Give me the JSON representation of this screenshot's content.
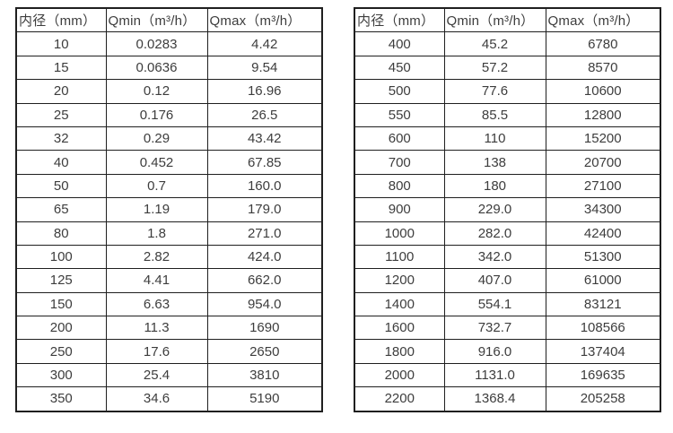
{
  "page": {
    "background": "#ffffff",
    "text_color": "#3d3d3d",
    "border_color": "#1f1f1f"
  },
  "tables": [
    {
      "name": "flow-spec-small-diameters",
      "headers": [
        "内径（mm）",
        "Qmin（m³/h）",
        "Qmax（m³/h）"
      ],
      "rows": [
        [
          "10",
          "0.0283",
          "4.42"
        ],
        [
          "15",
          "0.0636",
          "9.54"
        ],
        [
          "20",
          "0.12",
          "16.96"
        ],
        [
          "25",
          "0.176",
          "26.5"
        ],
        [
          "32",
          "0.29",
          "43.42"
        ],
        [
          "40",
          "0.452",
          "67.85"
        ],
        [
          "50",
          "0.7",
          "160.0"
        ],
        [
          "65",
          "1.19",
          "179.0"
        ],
        [
          "80",
          "1.8",
          "271.0"
        ],
        [
          "100",
          "2.82",
          "424.0"
        ],
        [
          "125",
          "4.41",
          "662.0"
        ],
        [
          "150",
          "6.63",
          "954.0"
        ],
        [
          "200",
          "11.3",
          "1690"
        ],
        [
          "250",
          "17.6",
          "2650"
        ],
        [
          "300",
          "25.4",
          "3810"
        ],
        [
          "350",
          "34.6",
          "5190"
        ]
      ]
    },
    {
      "name": "flow-spec-large-diameters",
      "headers": [
        "内径（mm）",
        "Qmin（m³/h）",
        "Qmax（m³/h）"
      ],
      "rows": [
        [
          "400",
          "45.2",
          "6780"
        ],
        [
          "450",
          "57.2",
          "8570"
        ],
        [
          "500",
          "77.6",
          "10600"
        ],
        [
          "550",
          "85.5",
          "12800"
        ],
        [
          "600",
          "110",
          "15200"
        ],
        [
          "700",
          "138",
          "20700"
        ],
        [
          "800",
          "180",
          "27100"
        ],
        [
          "900",
          "229.0",
          "34300"
        ],
        [
          "1000",
          "282.0",
          "42400"
        ],
        [
          "1100",
          "342.0",
          "51300"
        ],
        [
          "1200",
          "407.0",
          "61000"
        ],
        [
          "1400",
          "554.1",
          "83121"
        ],
        [
          "1600",
          "732.7",
          "108566"
        ],
        [
          "1800",
          "916.0",
          "137404"
        ],
        [
          "2000",
          "1131.0",
          "169635"
        ],
        [
          "2200",
          "1368.4",
          "205258"
        ]
      ]
    }
  ]
}
